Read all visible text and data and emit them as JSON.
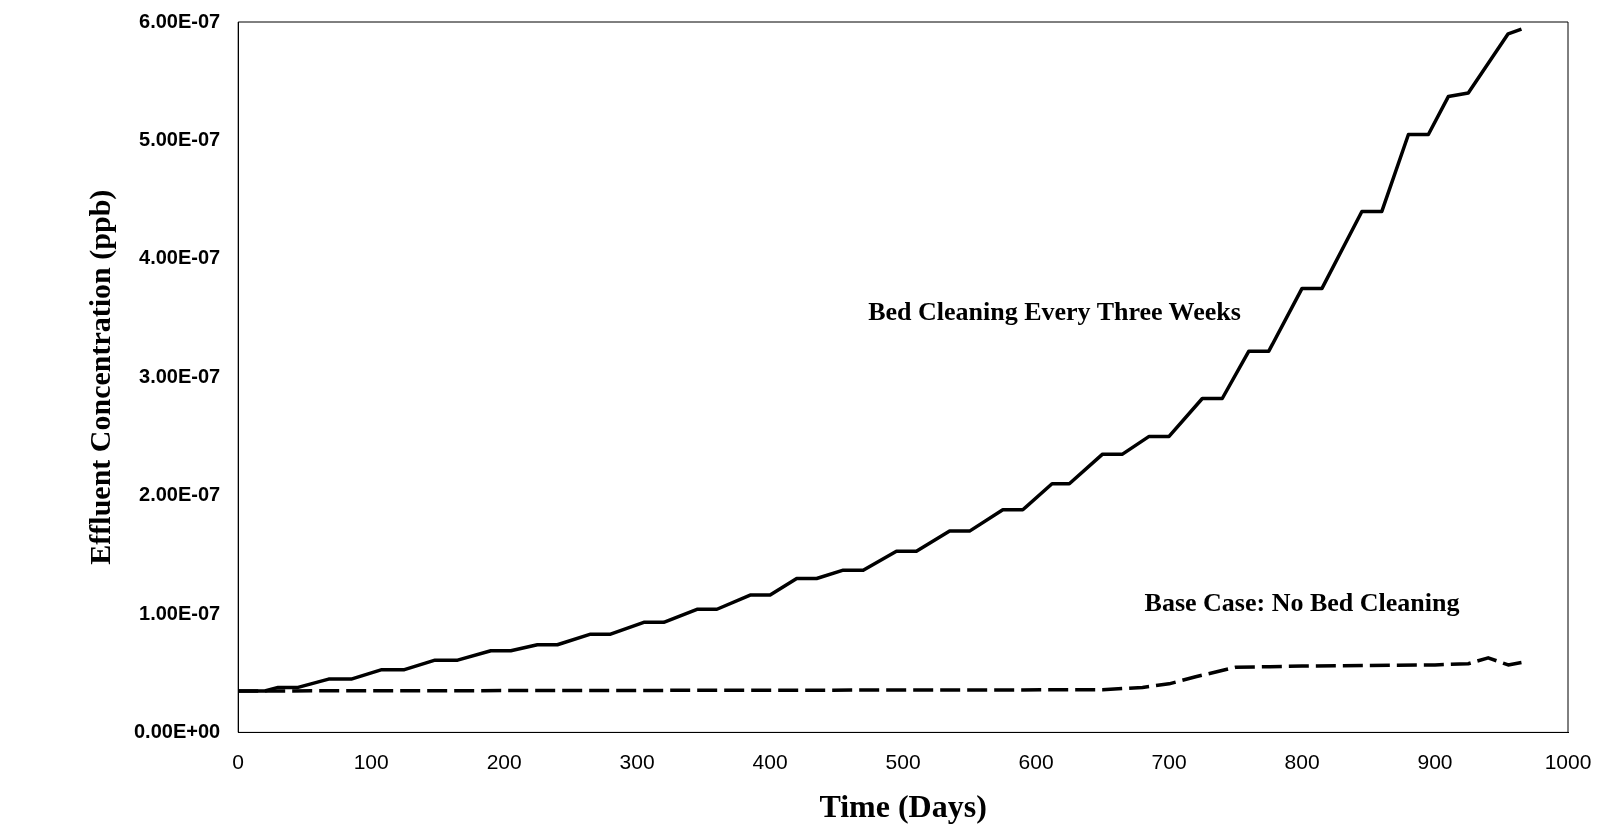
{
  "chart_data": {
    "type": "line",
    "xlabel": "Time (Days)",
    "ylabel": "Effluent Concentration (ppb)",
    "xlim": [
      0,
      1000
    ],
    "xticks": [
      0,
      100,
      200,
      300,
      400,
      500,
      600,
      700,
      800,
      900,
      1000
    ],
    "ylim": [
      0,
      6e-07
    ],
    "yticks": [
      {
        "value": 0,
        "label": "0.00E+00"
      },
      {
        "value": 1e-07,
        "label": "1.00E-07"
      },
      {
        "value": 2e-07,
        "label": "2.00E-07"
      },
      {
        "value": 3e-07,
        "label": "3.00E-07"
      },
      {
        "value": 4e-07,
        "label": "4.00E-07"
      },
      {
        "value": 5e-07,
        "label": "5.00E-07"
      },
      {
        "value": 6e-07,
        "label": "6.00E-07"
      }
    ],
    "grid": false,
    "legend": false,
    "marker": "none",
    "series": [
      {
        "name": "Bed Cleaning Every Three Weeks",
        "color": "#000000",
        "line_style": "solid",
        "x": [
          0,
          20,
          30,
          45,
          68,
          85,
          108,
          125,
          148,
          165,
          190,
          205,
          225,
          240,
          265,
          280,
          305,
          320,
          345,
          360,
          385,
          400,
          420,
          435,
          455,
          470,
          495,
          510,
          535,
          550,
          575,
          590,
          612,
          625,
          650,
          665,
          685,
          700,
          725,
          740,
          760,
          775,
          800,
          815,
          845,
          860,
          880,
          895,
          910,
          925,
          955,
          965
        ],
        "values": [
          3.5e-08,
          3.5e-08,
          3.8e-08,
          3.8e-08,
          4.5e-08,
          4.5e-08,
          5.3e-08,
          5.3e-08,
          6.1e-08,
          6.1e-08,
          6.9e-08,
          6.9e-08,
          7.4e-08,
          7.4e-08,
          8.3e-08,
          8.3e-08,
          9.3e-08,
          9.3e-08,
          1.04e-07,
          1.04e-07,
          1.16e-07,
          1.16e-07,
          1.3e-07,
          1.3e-07,
          1.37e-07,
          1.37e-07,
          1.53e-07,
          1.53e-07,
          1.7e-07,
          1.7e-07,
          1.88e-07,
          1.88e-07,
          2.1e-07,
          2.1e-07,
          2.35e-07,
          2.35e-07,
          2.5e-07,
          2.5e-07,
          2.82e-07,
          2.82e-07,
          3.22e-07,
          3.22e-07,
          3.75e-07,
          3.75e-07,
          4.4e-07,
          4.4e-07,
          5.05e-07,
          5.05e-07,
          5.37e-07,
          5.4e-07,
          5.9e-07,
          5.94e-07
        ]
      },
      {
        "name": "Base Case: No Bed Cleaning",
        "color": "#000000",
        "line_style": "dashed",
        "x": [
          0,
          650,
          680,
          700,
          720,
          750,
          800,
          900,
          925,
          940,
          955,
          965
        ],
        "values": [
          3.5e-08,
          3.6e-08,
          3.8e-08,
          4.1e-08,
          4.7e-08,
          5.5e-08,
          5.6e-08,
          5.7e-08,
          5.8e-08,
          6.3e-08,
          5.7e-08,
          5.9e-08
        ]
      }
    ]
  }
}
